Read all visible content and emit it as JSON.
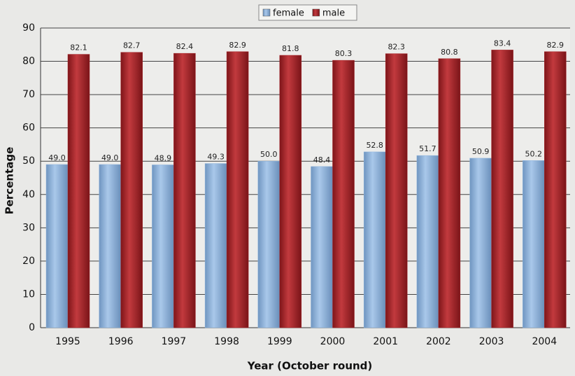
{
  "chart_data": {
    "type": "bar",
    "categories": [
      "1995",
      "1996",
      "1997",
      "1998",
      "1999",
      "2000",
      "2001",
      "2002",
      "2003",
      "2004"
    ],
    "series": [
      {
        "name": "female",
        "color": "#8db3dc",
        "values": [
          49.0,
          49.0,
          48.9,
          49.3,
          50.0,
          48.4,
          52.8,
          51.7,
          50.9,
          50.2
        ],
        "value_labels": [
          "49.0",
          "49.0",
          "48.9",
          "49.3",
          "50.0",
          "48.4",
          "52.8",
          "51.7",
          "50.9",
          "50.2"
        ]
      },
      {
        "name": "male",
        "color": "#a6262a",
        "values": [
          82.1,
          82.7,
          82.4,
          82.9,
          81.8,
          80.3,
          82.3,
          80.8,
          83.4,
          82.9
        ],
        "value_labels": [
          "82.1",
          "82.7",
          "82.4",
          "82.9",
          "81.8",
          "80.3",
          "82.3",
          "80.8",
          "83.4",
          "82.9"
        ]
      }
    ],
    "xlabel": "Year (October round)",
    "ylabel": "Percentage",
    "ylim": [
      0,
      90
    ],
    "yticks": [
      0,
      10,
      20,
      30,
      40,
      50,
      60,
      70,
      80,
      90
    ],
    "grid": true,
    "legend": "top"
  }
}
